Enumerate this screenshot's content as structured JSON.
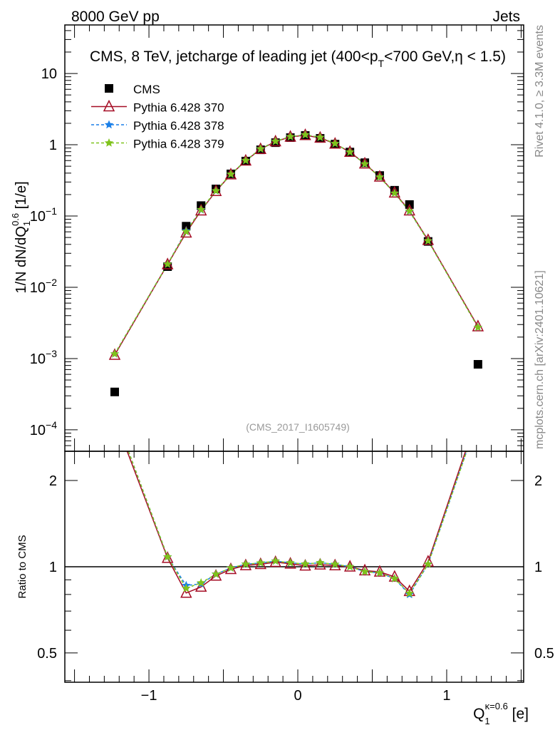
{
  "header": {
    "left": "8000 GeV pp",
    "right": "Jets"
  },
  "side_text": {
    "top": "Rivet 4.1.0, ≥ 3.3M events",
    "bottom": "mcplots.cern.ch [arXiv:2401.10621]"
  },
  "colors": {
    "cms": "#000000",
    "p370": "#a50d25",
    "p378": "#1a7fe8",
    "p379": "#7fc31c"
  },
  "chart_data": [
    {
      "type": "line",
      "title": "CMS, 8 TeV, jetcharge of leading jet (400<p_T<700 GeV,η < 1.5)",
      "title_parts": {
        "pre": "CMS, 8 TeV, jetcharge of leading jet (400<p",
        "sub": "T",
        "post": "<700 GeV,η < 1.5)"
      },
      "ylabel": "1/N dN/dQ1^0.6 [1/e]",
      "ylabel_parts": {
        "a": "1/N dN/dQ",
        "sub": "1",
        "sup": "0.6",
        "b": " [1/e]"
      },
      "annotation": "(CMS_2017_I1605749)",
      "yscale": "log",
      "xlim": [
        -1.565,
        1.517
      ],
      "ylim": [
        5e-05,
        48
      ],
      "ytick_labels": [
        {
          "v": 10,
          "base": "10",
          "exp": ""
        },
        {
          "v": 1,
          "base": "1",
          "exp": ""
        },
        {
          "v": 0.1,
          "base": "10",
          "exp": "−1"
        },
        {
          "v": 0.01,
          "base": "10",
          "exp": "−2"
        },
        {
          "v": 0.001,
          "base": "10",
          "exp": "−3"
        },
        {
          "v": 0.0001,
          "base": "10",
          "exp": "−4"
        }
      ],
      "legend_position": "top-left",
      "x": [
        -1.23,
        -0.875,
        -0.75,
        -0.65,
        -0.55,
        -0.45,
        -0.35,
        -0.25,
        -0.15,
        -0.05,
        0.05,
        0.15,
        0.25,
        0.35,
        0.45,
        0.55,
        0.65,
        0.75,
        0.875,
        1.21
      ],
      "series": [
        {
          "name": "CMS",
          "key": "cms",
          "marker": "square",
          "values": [
            0.00034,
            0.0195,
            0.072,
            0.14,
            0.24,
            0.39,
            0.59,
            0.85,
            1.07,
            1.26,
            1.35,
            1.23,
            1.02,
            0.79,
            0.56,
            0.37,
            0.23,
            0.145,
            0.044,
            0.00083
          ]
        },
        {
          "name": "Pythia 6.428 370",
          "key": "p370",
          "marker": "triangle",
          "values": [
            0.00112,
            0.0209,
            0.0583,
            0.119,
            0.223,
            0.382,
            0.596,
            0.867,
            1.11,
            1.29,
            1.36,
            1.25,
            1.03,
            0.79,
            0.543,
            0.355,
            0.212,
            0.119,
            0.0458,
            0.00282
          ]
        },
        {
          "name": "Pythia 6.428 378",
          "key": "p378",
          "marker": "star",
          "values": [
            0.00116,
            0.0211,
            0.0619,
            0.122,
            0.226,
            0.386,
            0.602,
            0.876,
            1.12,
            1.3,
            1.38,
            1.27,
            1.04,
            0.79,
            0.538,
            0.352,
            0.209,
            0.116,
            0.0449,
            0.00274
          ]
        },
        {
          "name": "Pythia 6.428 379",
          "key": "p379",
          "marker": "star",
          "values": [
            0.00116,
            0.0211,
            0.0605,
            0.123,
            0.226,
            0.386,
            0.602,
            0.876,
            1.12,
            1.3,
            1.38,
            1.27,
            1.04,
            0.79,
            0.538,
            0.352,
            0.209,
            0.117,
            0.0449,
            0.00274
          ]
        }
      ]
    },
    {
      "type": "line",
      "ylabel": "Ratio to CMS",
      "yscale": "log",
      "ylim": [
        0.395,
        2.53
      ],
      "ytick_labels": [
        {
          "v": 2,
          "label": "2"
        },
        {
          "v": 1,
          "label": "1"
        },
        {
          "v": 0.5,
          "label": "0.5"
        }
      ],
      "xlabel_parts": {
        "a": "Q",
        "sub": "1",
        "sup": "κ=0.6",
        "b": " [e]"
      },
      "xtick_labels": [
        {
          "v": -1,
          "label": "−1"
        },
        {
          "v": 0,
          "label": "0"
        },
        {
          "v": 1,
          "label": "1"
        }
      ],
      "reference": "ratio of each Pythia series to CMS"
    }
  ]
}
